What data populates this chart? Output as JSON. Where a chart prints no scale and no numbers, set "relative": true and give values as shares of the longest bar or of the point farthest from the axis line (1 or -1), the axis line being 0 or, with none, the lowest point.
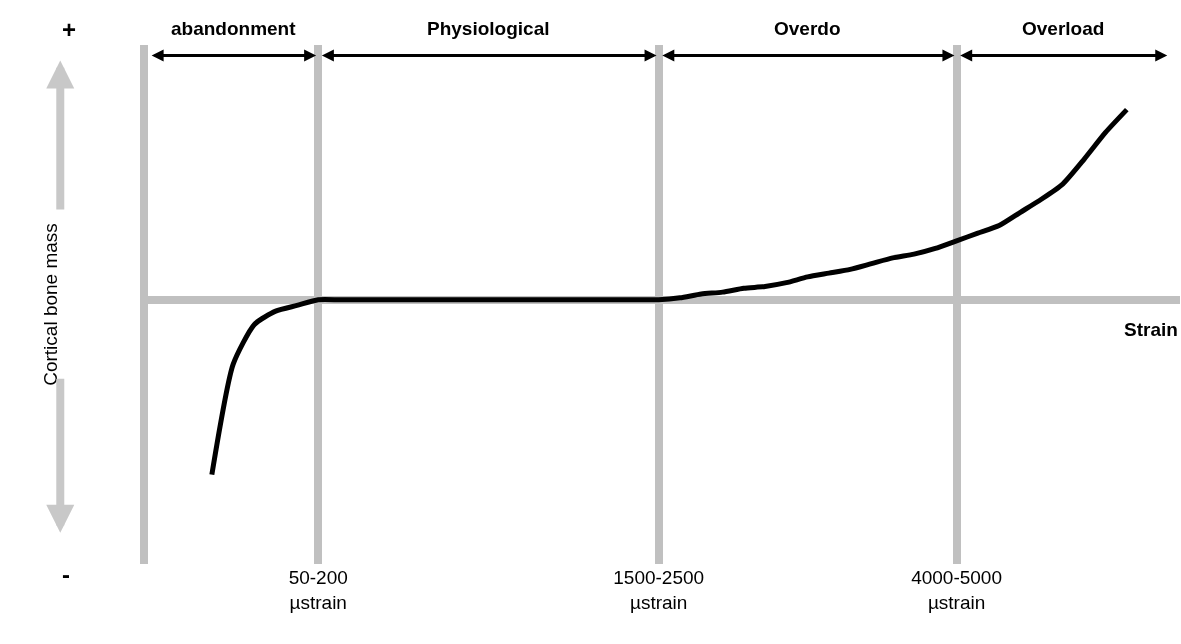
{
  "chart_data": {
    "type": "line",
    "relative": true,
    "ylabel": "Cortical bone mass",
    "categories": [
      null,
      null,
      null,
      null,
      null,
      null,
      null,
      null,
      "50-200 µstrain",
      null,
      null,
      null,
      null,
      null,
      null,
      null,
      null,
      null,
      null,
      null,
      null,
      null,
      null,
      null,
      "1500-2500 µstrain",
      null,
      null,
      null,
      null,
      null,
      null,
      null,
      null,
      null,
      null,
      null,
      null,
      null,
      "4000-5000 µstrain",
      null,
      null,
      null,
      null,
      null,
      null,
      null,
      null,
      null,
      null
    ],
    "series": [
      {
        "color": "#000000",
        "values": [
          null,
          null,
          null,
          -0.92,
          -0.34,
          -0.13,
          -0.06,
          -0.03,
          0,
          0,
          0,
          0,
          0,
          0,
          0,
          0,
          0,
          0,
          0,
          0,
          0,
          0,
          0,
          0,
          0,
          0.01,
          0.03,
          0.04,
          0.06,
          0.07,
          0.09,
          0.12,
          0.14,
          0.16,
          0.19,
          0.22,
          0.24,
          0.27,
          0.31,
          0.35,
          0.39,
          0.46,
          0.53,
          0.61,
          0.74,
          0.88,
          1,
          null,
          null
        ]
      }
    ],
    "annotations": [
      "abandonment",
      "Physiological",
      "Overdo",
      "Overload",
      "Strain",
      "+",
      "-"
    ],
    "grid": "x",
    "marker": "none",
    "line_style": "solid"
  }
}
